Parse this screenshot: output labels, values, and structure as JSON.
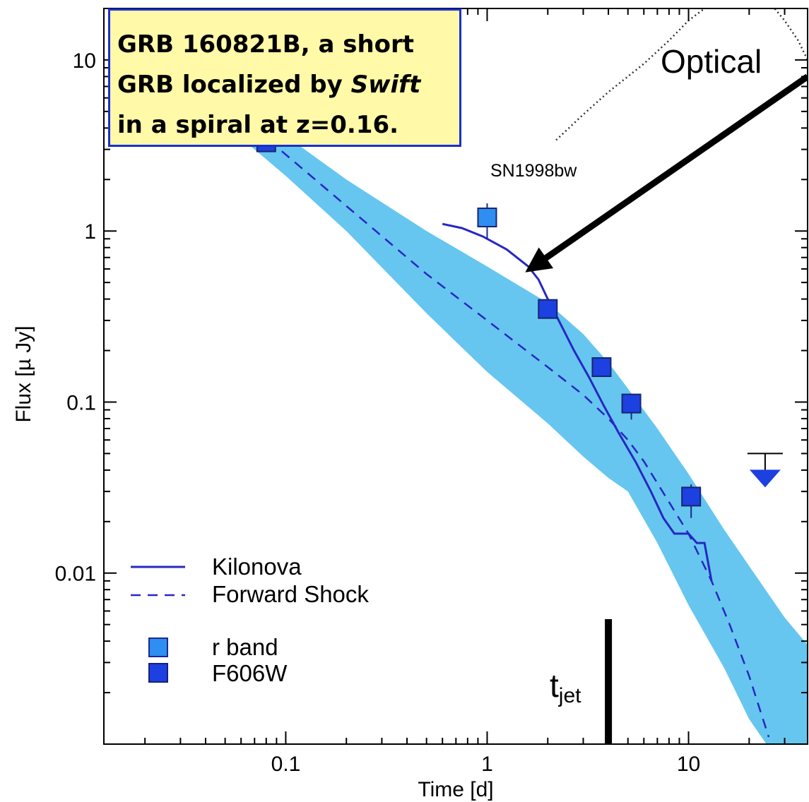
{
  "infobox": {
    "line1": "GRB 160821B, a short",
    "line2_pre": "GRB localized by ",
    "line2_em": "Swift",
    "line3": "in a spiral at z=0.16."
  },
  "annotations": {
    "optical": "Optical",
    "sn_label": "SN1998bw",
    "tjet_main": "t",
    "tjet_sub": "jet",
    "tjet_time": 4.0
  },
  "colors": {
    "band": "#66c6ef",
    "kilonova": "#2727c4",
    "forward_shock": "#2727c4",
    "r_band": "#2f8ef2",
    "f606w": "#1d40e0",
    "sn": "#333333",
    "info_bg": "#fff9a8",
    "info_border": "#1a2fd0"
  },
  "chart_data": {
    "type": "line",
    "xlabel": "Time [d]",
    "ylabel": "Flux [µ Jy]",
    "xscale": "log",
    "yscale": "log",
    "xlim": [
      0.0125,
      39
    ],
    "ylim": [
      0.001,
      20
    ],
    "xticks": [
      {
        "v": 0.1,
        "label": "0.1"
      },
      {
        "v": 1,
        "label": "1"
      },
      {
        "v": 10,
        "label": "10"
      }
    ],
    "yticks": [
      {
        "v": 10,
        "label": "10"
      },
      {
        "v": 1,
        "label": "1"
      },
      {
        "v": 0.1,
        "label": "0.1"
      },
      {
        "v": 0.01,
        "label": "0.01"
      }
    ],
    "legend_position": "bottom-left",
    "series": [
      {
        "name": "Kilonova",
        "style": "solid",
        "x": [
          0.6,
          0.75,
          0.95,
          1.25,
          1.6,
          1.8,
          2.0,
          2.3,
          2.7,
          3.2,
          3.8,
          4.5,
          5.5,
          6.5,
          7.5,
          8.5,
          10.0,
          11.0,
          12.0,
          13.0
        ],
        "y": [
          1.1,
          1.04,
          0.93,
          0.78,
          0.62,
          0.52,
          0.4,
          0.29,
          0.2,
          0.14,
          0.095,
          0.066,
          0.044,
          0.03,
          0.021,
          0.017,
          0.017,
          0.015,
          0.015,
          0.009
        ]
      },
      {
        "name": "Forward Shock",
        "style": "dashed",
        "x": [
          0.045,
          0.07,
          0.1,
          0.2,
          0.5,
          1.0,
          2.0,
          3.0,
          4.0,
          5.0,
          6.0,
          8.0,
          10.0,
          13.0,
          16.0,
          20.0,
          25.0
        ],
        "y": [
          6.0,
          4.0,
          2.8,
          1.4,
          0.56,
          0.3,
          0.16,
          0.11,
          0.08,
          0.06,
          0.045,
          0.026,
          0.017,
          0.009,
          0.005,
          0.0025,
          0.0011
        ]
      },
      {
        "name": "SN1998bw",
        "style": "dotted",
        "x": [
          2.2,
          3.0,
          4.0,
          6.0,
          8.0,
          10.0,
          12.0,
          15.0,
          18.0,
          21.0,
          25.0,
          30.0,
          35.0,
          39.0
        ],
        "y": [
          3.4,
          4.8,
          6.5,
          9.5,
          13.0,
          17.0,
          20.0,
          23.0,
          25.0,
          25.5,
          22.0,
          17.0,
          13.0,
          10.0
        ]
      }
    ],
    "band": {
      "name": "Forward Shock uncertainty",
      "x": [
        0.045,
        0.07,
        0.1,
        0.2,
        0.5,
        1.0,
        2.0,
        3.0,
        4.0,
        5.0,
        7.0,
        10.0,
        15.0,
        20.0,
        30.0,
        39.0
      ],
      "upper": [
        6.5,
        4.8,
        3.6,
        2.0,
        1.0,
        0.62,
        0.38,
        0.25,
        0.17,
        0.12,
        0.07,
        0.038,
        0.018,
        0.011,
        0.0055,
        0.0038
      ],
      "lower": [
        4.5,
        3.0,
        2.1,
        1.0,
        0.33,
        0.15,
        0.075,
        0.048,
        0.036,
        0.03,
        0.015,
        0.0065,
        0.0028,
        0.0014,
        0.0007,
        0.0005
      ]
    },
    "points": [
      {
        "name": "r band",
        "x": [
          1.0
        ],
        "y": [
          1.2
        ],
        "yerr_lo": [
          0.9
        ],
        "yerr_hi": [
          1.45
        ]
      },
      {
        "name": "F606W",
        "x": [
          0.08,
          2.0,
          3.7,
          5.2,
          10.3
        ],
        "y": [
          3.3,
          0.35,
          0.16,
          0.098,
          0.028
        ],
        "yerr_lo": [
          3.3,
          0.35,
          0.16,
          0.079,
          0.021
        ],
        "yerr_hi": [
          3.3,
          0.35,
          0.16,
          0.098,
          0.033
        ]
      }
    ],
    "upper_limits": [
      {
        "x": 24.0,
        "y": 0.05
      }
    ],
    "arrow": {
      "from_x": 39.0,
      "from_y": 8.0,
      "to_x": 1.7,
      "to_y": 0.62
    }
  }
}
